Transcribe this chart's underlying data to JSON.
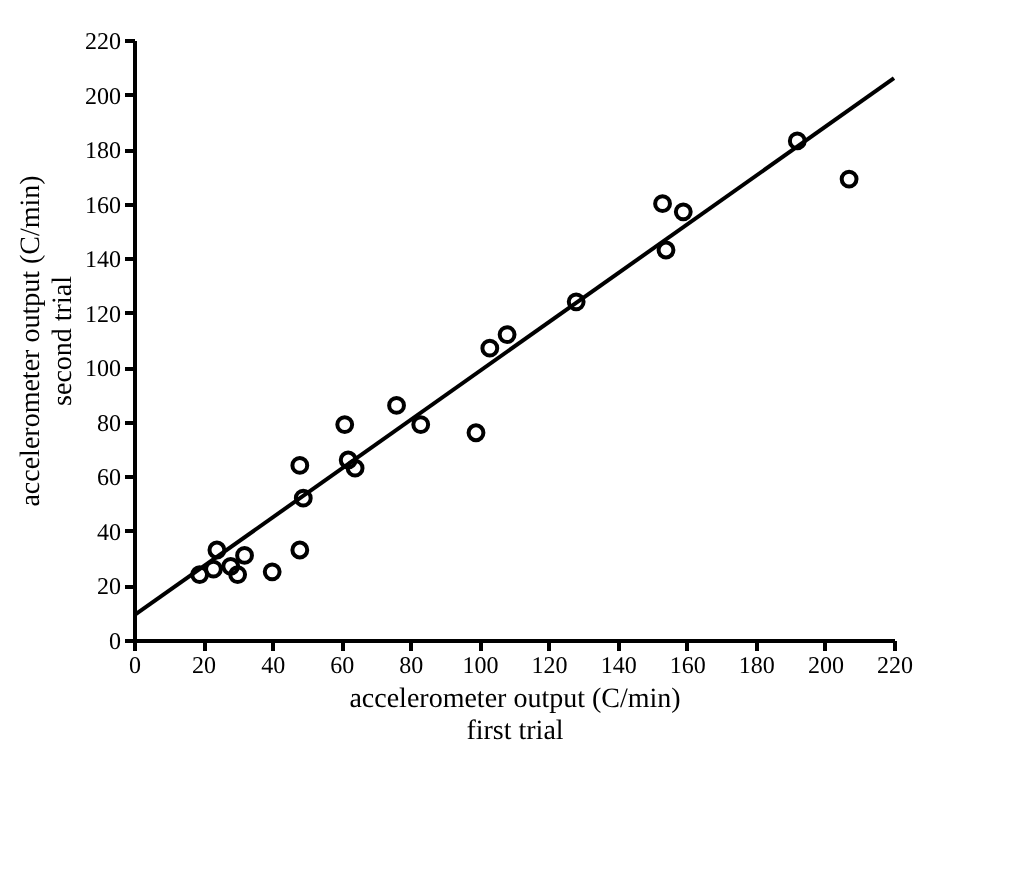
{
  "chart_data": {
    "type": "scatter",
    "xlabel": "accelerometer output (C/min)\nfirst trial",
    "ylabel": "accelerometer output (C/min)\nsecond trial",
    "grid": false,
    "xlim": [
      0,
      220
    ],
    "ylim": [
      0,
      220
    ],
    "xticks": [
      0,
      20,
      40,
      60,
      80,
      100,
      120,
      140,
      160,
      180,
      200,
      220
    ],
    "yticks": [
      0,
      20,
      40,
      60,
      80,
      100,
      120,
      140,
      160,
      180,
      200,
      220
    ],
    "series": [
      {
        "type": "scatter",
        "marker": "circle",
        "color": "#000000",
        "x": [
          19,
          23,
          24,
          28,
          30,
          32,
          40,
          48,
          48,
          49,
          61,
          62,
          64,
          76,
          83,
          99,
          103,
          108,
          128,
          153,
          154,
          159,
          192,
          207
        ],
        "values": [
          24,
          26,
          33,
          27,
          24,
          31,
          25,
          64,
          33,
          52,
          79,
          66,
          63,
          86,
          79,
          76,
          107,
          112,
          124,
          160,
          143,
          157,
          183,
          169
        ]
      },
      {
        "type": "line",
        "color": "#000000",
        "x": [
          0,
          220
        ],
        "values": [
          9,
          206
        ]
      }
    ]
  }
}
